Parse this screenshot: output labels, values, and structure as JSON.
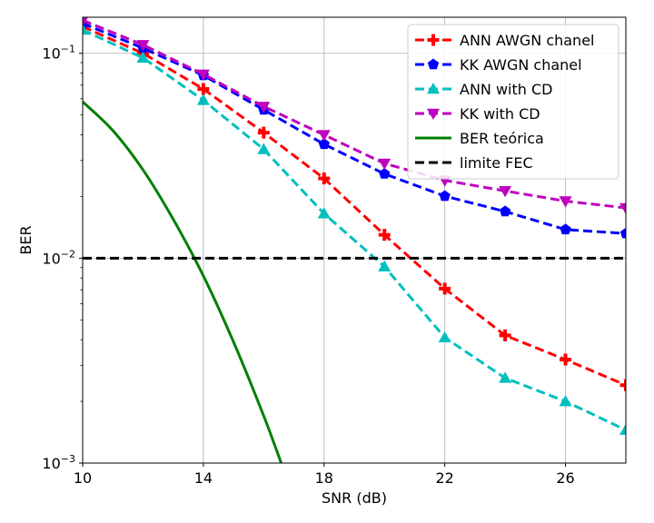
{
  "chart_data": {
    "type": "line",
    "xlabel": "SNR (dB)",
    "ylabel": "BER",
    "xlim": [
      10,
      28
    ],
    "ylim": [
      0.001,
      0.15
    ],
    "yscale": "log",
    "grid": true,
    "legend_position": "top-right",
    "xticks": [
      10,
      14,
      18,
      22,
      26
    ],
    "yticks": [
      {
        "value": 0.1,
        "base": "10",
        "exp": "−1"
      },
      {
        "value": 0.01,
        "base": "10",
        "exp": "−2"
      },
      {
        "value": 0.001,
        "base": "10",
        "exp": "−3"
      }
    ],
    "series": [
      {
        "name": "ANN AWGN chanel",
        "color": "#ff0000",
        "marker": "plus",
        "dashed": true,
        "x": [
          10,
          12,
          14,
          16,
          18,
          20,
          22,
          24,
          26,
          28
        ],
        "y": [
          0.135,
          0.1,
          0.067,
          0.041,
          0.0245,
          0.013,
          0.0071,
          0.0042,
          0.0032,
          0.0024
        ]
      },
      {
        "name": "KK AWGN chanel",
        "color": "#0000ff",
        "marker": "pentagon",
        "dashed": true,
        "x": [
          10,
          12,
          14,
          16,
          18,
          20,
          22,
          24,
          26,
          28
        ],
        "y": [
          0.14,
          0.106,
          0.078,
          0.053,
          0.036,
          0.0258,
          0.0201,
          0.0169,
          0.0138,
          0.0132
        ]
      },
      {
        "name": "ANN with CD",
        "color": "#00bfbf",
        "marker": "triangle-up",
        "dashed": true,
        "x": [
          10,
          12,
          14,
          16,
          18,
          20,
          22,
          24,
          26,
          28
        ],
        "y": [
          0.13,
          0.095,
          0.059,
          0.034,
          0.0165,
          0.0091,
          0.0041,
          0.0026,
          0.002,
          0.00145
        ]
      },
      {
        "name": "KK with CD",
        "color": "#bf00bf",
        "marker": "triangle-down",
        "dashed": true,
        "x": [
          10,
          12,
          14,
          16,
          18,
          20,
          22,
          24,
          26,
          28
        ],
        "y": [
          0.145,
          0.11,
          0.079,
          0.055,
          0.04,
          0.029,
          0.024,
          0.0213,
          0.019,
          0.0176
        ]
      },
      {
        "name": "BER teórica",
        "color": "#008000",
        "marker": "none",
        "dashed": false,
        "x": [
          10,
          11,
          12,
          13,
          14,
          15,
          16,
          16.6
        ],
        "y": [
          0.058,
          0.042,
          0.027,
          0.0155,
          0.0082,
          0.0039,
          0.0017,
          0.00098
        ]
      },
      {
        "name": "limite FEC",
        "color": "#000000",
        "marker": "none",
        "dashed": true,
        "x": [
          10,
          28
        ],
        "y": [
          0.01,
          0.01
        ]
      }
    ]
  }
}
